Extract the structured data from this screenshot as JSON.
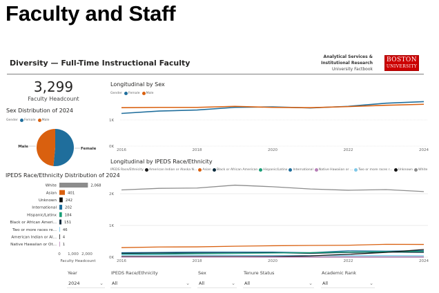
{
  "page_title": "Faculty and Staff",
  "report": {
    "title": "Diversity — Full-Time Instructional Faculty",
    "org_line1": "Analytical Services &",
    "org_line2": "Institutional Research",
    "org_line3": "University Factbook",
    "logo_line1": "BOSTON",
    "logo_line2": "UNIVERSITY"
  },
  "kpi": {
    "value": "3,299",
    "label": "Faculty Headcount"
  },
  "colors": {
    "female": "#1f6e9c",
    "male": "#d9600f",
    "white": "#8c8c8c",
    "asian": "#d9600f",
    "unknown": "#111111",
    "international": "#1f6e9c",
    "hispanic": "#1a9e77",
    "black": "#0b2a3c",
    "two_more": "#7fc8e8",
    "american_indian": "#1b1b1b",
    "native_hawaiian": "#b77fb7"
  },
  "sex_pie": {
    "title": "Sex Distribution of 2024",
    "legend_title": "Gender",
    "legend": [
      "Female",
      "Male"
    ],
    "labels": {
      "female": "Female",
      "male": "Male"
    }
  },
  "race_bar": {
    "title": "IPEDS Race/Ethnicity Distribution of 2024",
    "xlabel": "Faculty Headcount",
    "ticks": [
      "0",
      "1,000",
      "2,000"
    ]
  },
  "sex_line": {
    "title": "Longitudinal by Sex",
    "legend_title": "Gender",
    "legend": [
      "Female",
      "Male"
    ],
    "yticks": [
      "0K",
      "1K"
    ],
    "xticks": [
      "2016",
      "2018",
      "2020",
      "2022",
      "2024"
    ]
  },
  "race_line": {
    "title": "Longitudinal by IPEDS Race/Ethnicity",
    "legend_title": "IPEDS Race/Ethnicity",
    "legend": [
      "American Indian or Alaska N...",
      "Asian",
      "Black or African American",
      "Hispanic/Latinx",
      "International",
      "Native Hawaiian or ...",
      "Two or more races r...",
      "Unknown",
      "White"
    ],
    "yticks": [
      "0K",
      "1K",
      "2K"
    ],
    "xticks": [
      "2016",
      "2018",
      "2020",
      "2022",
      "2024"
    ]
  },
  "slicers": [
    {
      "label": "Year",
      "value": "2024"
    },
    {
      "label": "IPEDS Race/Ethnicity",
      "value": "All"
    },
    {
      "label": "Sex",
      "value": "All"
    },
    {
      "label": "Tenure Status",
      "value": "All"
    },
    {
      "label": "Academic Rank",
      "value": "All"
    }
  ],
  "chart_data": [
    {
      "type": "pie",
      "title": "Sex Distribution of 2024",
      "categories": [
        "Female",
        "Male"
      ],
      "values": [
        1700,
        1599
      ],
      "legend": "top-left"
    },
    {
      "type": "bar",
      "orientation": "horizontal",
      "title": "IPEDS Race/Ethnicity Distribution of 2024",
      "categories": [
        "White",
        "Asian",
        "Unknown",
        "International",
        "Hispanic/Latinx",
        "Black or African Ameri...",
        "Two or more races re...",
        "American Indian or Al...",
        "Native Hawaiian or Ot..."
      ],
      "series_keys": [
        "white",
        "asian",
        "unknown",
        "international",
        "hispanic",
        "black",
        "two_more",
        "american_indian",
        "native_hawaiian"
      ],
      "values": [
        2068,
        401,
        242,
        202,
        184,
        151,
        46,
        4,
        1
      ],
      "xlabel": "Faculty Headcount",
      "xlim": [
        0,
        2300
      ]
    },
    {
      "type": "line",
      "title": "Longitudinal by Sex",
      "x": [
        2016,
        2017,
        2018,
        2019,
        2020,
        2021,
        2022,
        2023,
        2024
      ],
      "series": [
        {
          "name": "Female",
          "key": "female",
          "values": [
            1250,
            1340,
            1380,
            1480,
            1500,
            1460,
            1520,
            1640,
            1700
          ]
        },
        {
          "name": "Male",
          "key": "male",
          "values": [
            1470,
            1480,
            1480,
            1520,
            1480,
            1470,
            1510,
            1560,
            1599
          ]
        }
      ],
      "ylim": [
        0,
        1800
      ],
      "legend": "top-left"
    },
    {
      "type": "line",
      "title": "Longitudinal by IPEDS Race/Ethnicity",
      "x": [
        2016,
        2017,
        2018,
        2019,
        2020,
        2021,
        2022,
        2023,
        2024
      ],
      "series": [
        {
          "name": "White",
          "key": "white",
          "values": [
            2120,
            2170,
            2180,
            2270,
            2220,
            2150,
            2110,
            2130,
            2068
          ]
        },
        {
          "name": "Asian",
          "key": "asian",
          "values": [
            300,
            320,
            325,
            345,
            360,
            370,
            375,
            405,
            401
          ]
        },
        {
          "name": "International",
          "key": "international",
          "values": [
            140,
            150,
            160,
            160,
            160,
            140,
            200,
            190,
            202
          ]
        },
        {
          "name": "Black or African American",
          "key": "black",
          "values": [
            120,
            130,
            130,
            130,
            140,
            120,
            150,
            160,
            151
          ]
        },
        {
          "name": "Hispanic/Latinx",
          "key": "hispanic",
          "values": [
            90,
            100,
            110,
            120,
            130,
            140,
            160,
            170,
            184
          ]
        },
        {
          "name": "Two or more races",
          "key": "two_more",
          "values": [
            70,
            70,
            60,
            60,
            50,
            50,
            50,
            50,
            46
          ]
        },
        {
          "name": "Unknown",
          "key": "unknown",
          "values": [
            20,
            20,
            20,
            20,
            20,
            40,
            90,
            150,
            242
          ]
        },
        {
          "name": "American Indian or Alaska Native",
          "key": "american_indian",
          "values": [
            5,
            5,
            5,
            5,
            5,
            5,
            4,
            4,
            4
          ]
        },
        {
          "name": "Native Hawaiian or Other Pacific Islander",
          "key": "native_hawaiian",
          "values": [
            2,
            2,
            2,
            2,
            1,
            1,
            1,
            1,
            1
          ]
        }
      ],
      "ylim": [
        0,
        2400
      ],
      "legend": "top-left"
    }
  ]
}
